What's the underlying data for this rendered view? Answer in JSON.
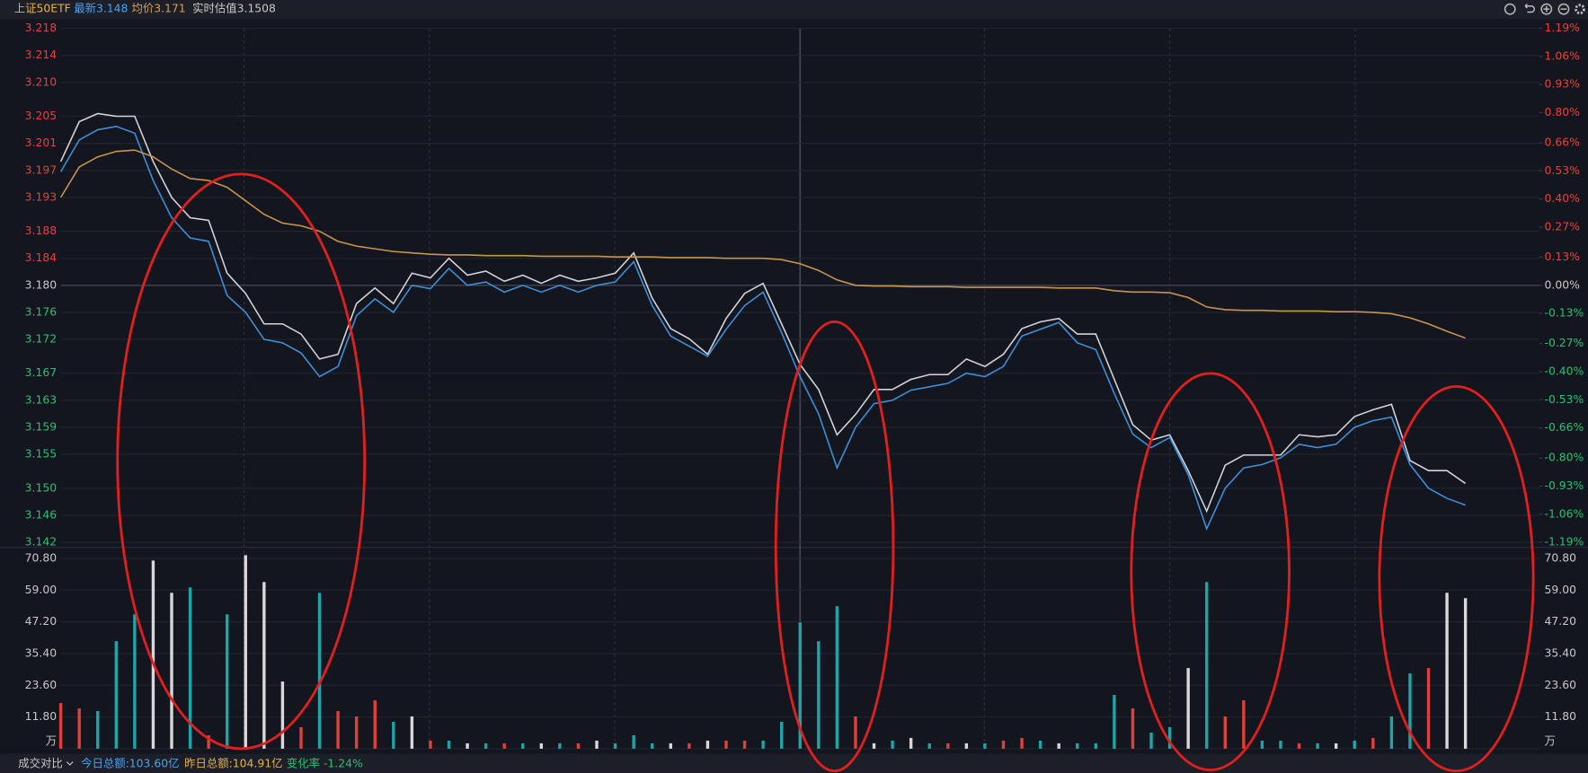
{
  "header": {
    "symbol": "上证50ETF",
    "latest": "最新3.148",
    "average": "均价3.171",
    "estimate": "实时估值3.1508"
  },
  "footer": {
    "compare": "成交对比",
    "today": "今日总额:103.60亿",
    "yesterday": "昨日总额:104.91亿",
    "change": "变化率 -1.24%"
  },
  "chart_data": [
    {
      "type": "line",
      "ylim": [
        3.142,
        3.218
      ],
      "yticks": [
        3.218,
        3.214,
        {
          "value": 3.21,
          "label": "3.210"
        },
        3.205,
        3.201,
        3.197,
        3.193,
        3.188,
        3.184,
        {
          "value": 3.18,
          "label": "3.180"
        },
        3.176,
        3.172,
        3.167,
        3.163,
        3.159,
        3.155,
        {
          "value": 3.15,
          "label": "3.150"
        },
        3.146,
        3.142
      ],
      "y2lim": [
        -1.19,
        1.19
      ],
      "y2ticks": [
        {
          "value": 1.19,
          "label": "1.19%"
        },
        {
          "value": 1.06,
          "label": "1.06%"
        },
        {
          "value": 0.93,
          "label": "0.93%"
        },
        {
          "value": 0.8,
          "label": "0.80%"
        },
        {
          "value": 0.66,
          "label": "0.66%"
        },
        {
          "value": 0.53,
          "label": "0.53%"
        },
        {
          "value": 0.4,
          "label": "0.40%"
        },
        {
          "value": 0.27,
          "label": "0.27%"
        },
        {
          "value": 0.13,
          "label": "0.13%"
        },
        {
          "value": 0,
          "label": "0.00%"
        },
        {
          "value": -0.13,
          "label": "-0.13%"
        },
        {
          "value": -0.27,
          "label": "-0.27%"
        },
        {
          "value": -0.4,
          "label": "-0.40%"
        },
        {
          "value": -0.53,
          "label": "-0.53%"
        },
        {
          "value": -0.66,
          "label": "-0.66%"
        },
        {
          "value": -0.8,
          "label": "-0.80%"
        },
        {
          "value": -0.93,
          "label": "-0.93%"
        },
        {
          "value": -1.06,
          "label": "-1.06%"
        },
        {
          "value": -1.19,
          "label": "-1.19%"
        }
      ],
      "grid": true,
      "series": [
        {
          "color": "#d4d4d8",
          "values": [
            3.1983,
            3.2042,
            3.2054,
            3.205,
            3.205,
            3.1983,
            3.193,
            3.19,
            3.1896,
            3.1818,
            3.1788,
            3.1743,
            3.1743,
            3.1728,
            3.1691,
            3.1698,
            3.1773,
            3.1796,
            3.1773,
            3.1818,
            3.1811,
            3.184,
            3.1815,
            3.1821,
            3.1806,
            3.1815,
            3.1803,
            3.1815,
            3.1806,
            3.1811,
            3.1818,
            3.1848,
            3.1781,
            3.1736,
            3.1721,
            3.1698,
            3.1751,
            3.1788,
            3.1803,
            3.1743,
            3.1683,
            3.1646,
            3.1579,
            3.1609,
            3.1646,
            3.1646,
            3.1661,
            3.1668,
            3.1668,
            3.1691,
            3.168,
            3.1698,
            3.1736,
            3.1746,
            3.1751,
            3.1728,
            3.1728,
            3.1661,
            3.1594,
            3.1571,
            3.1579,
            3.1526,
            3.1466,
            3.1534,
            3.1549,
            3.1549,
            3.1549,
            3.1579,
            3.1576,
            3.1579,
            3.1606,
            3.1616,
            3.1624,
            3.1541,
            3.1526,
            3.1526,
            3.1507
          ]
        },
        {
          "color": "#3f8fd8",
          "values": [
            3.1968,
            3.2015,
            3.203,
            3.2035,
            3.2025,
            3.1955,
            3.19,
            3.187,
            3.1865,
            3.1785,
            3.176,
            3.172,
            3.1715,
            3.17,
            3.1665,
            3.168,
            3.1755,
            3.178,
            3.176,
            3.18,
            3.1795,
            3.1825,
            3.18,
            3.1805,
            3.179,
            3.18,
            3.179,
            3.18,
            3.179,
            3.18,
            3.1805,
            3.1835,
            3.177,
            3.1725,
            3.171,
            3.1695,
            3.1735,
            3.177,
            3.179,
            3.173,
            3.1665,
            3.161,
            3.153,
            3.159,
            3.1625,
            3.163,
            3.1645,
            3.165,
            3.1655,
            3.167,
            3.1665,
            3.168,
            3.1725,
            3.1735,
            3.1745,
            3.1715,
            3.1705,
            3.164,
            3.158,
            3.156,
            3.1575,
            3.152,
            3.144,
            3.15,
            3.153,
            3.1535,
            3.1545,
            3.1565,
            3.156,
            3.1565,
            3.159,
            3.16,
            3.1605,
            3.1535,
            3.15,
            3.1485,
            3.1475
          ]
        },
        {
          "color": "#c9954c",
          "values": [
            3.193,
            3.1975,
            3.199,
            3.1998,
            3.2,
            3.199,
            3.1972,
            3.1958,
            3.1955,
            3.1945,
            3.1925,
            3.1905,
            3.1892,
            3.1888,
            3.188,
            3.1865,
            3.1858,
            3.1854,
            3.185,
            3.1848,
            3.1846,
            3.1845,
            3.1845,
            3.1844,
            3.1844,
            3.1844,
            3.1843,
            3.1843,
            3.1843,
            3.1843,
            3.1842,
            3.1842,
            3.1842,
            3.1841,
            3.1841,
            3.1841,
            3.184,
            3.184,
            3.184,
            3.1838,
            3.1832,
            3.1822,
            3.1808,
            3.18,
            3.1799,
            3.1799,
            3.1798,
            3.1798,
            3.1798,
            3.1797,
            3.1797,
            3.1797,
            3.1797,
            3.1797,
            3.1796,
            3.1796,
            3.1796,
            3.1792,
            3.179,
            3.179,
            3.1789,
            3.1782,
            3.1768,
            3.1764,
            3.1763,
            3.1763,
            3.1762,
            3.1762,
            3.1762,
            3.1761,
            3.1761,
            3.176,
            3.1758,
            3.1752,
            3.1743,
            3.1732,
            3.1722
          ]
        }
      ]
    },
    {
      "type": "bar",
      "ylim": [
        0,
        73.4
      ],
      "yticks": [
        {
          "value": 0,
          "label": "万"
        },
        {
          "value": 11.8,
          "label": "11.80"
        },
        {
          "value": 23.6,
          "label": "23.60"
        },
        {
          "value": 35.4,
          "label": "35.40"
        },
        {
          "value": 47.2,
          "label": "47.20"
        },
        {
          "value": 59,
          "label": "59.00"
        },
        {
          "value": 70.8,
          "label": "70.80"
        }
      ],
      "grid": true,
      "values": [
        17,
        15,
        14,
        40,
        50,
        70,
        58,
        60,
        5,
        50,
        72,
        62,
        25,
        8,
        58,
        14,
        12,
        18,
        10,
        12,
        3,
        3,
        2,
        2,
        2,
        2,
        2,
        2,
        2,
        3,
        2,
        5,
        2,
        2,
        2,
        3,
        3,
        3,
        3,
        10,
        47,
        40,
        53,
        12,
        2,
        3,
        4,
        2,
        2,
        2,
        2,
        3,
        4,
        3,
        2,
        2,
        2,
        20,
        15,
        6,
        8,
        30,
        62,
        12,
        18,
        3,
        3,
        2,
        2,
        2,
        3,
        4,
        12,
        28,
        30,
        58,
        56
      ],
      "colors": [
        "#e0403a",
        "#e0403a",
        "#1fa5a8",
        "#1fa5a8",
        "#1fa5a8",
        "#d8d8d8",
        "#d8d8d8",
        "#1fa5a8",
        "#e0403a",
        "#1fa5a8",
        "#d8d8d8",
        "#d8d8d8",
        "#d8d8d8",
        "#e0403a",
        "#1fa5a8",
        "#e0403a",
        "#e0403a",
        "#e0403a",
        "#1fa5a8",
        "#d8d8d8",
        "#e0403a",
        "#1fa5a8",
        "#d8d8d8",
        "#1fa5a8",
        "#e0403a",
        "#1fa5a8",
        "#d8d8d8",
        "#1fa5a8",
        "#e0403a",
        "#d8d8d8",
        "#1fa5a8",
        "#1fa5a8",
        "#1fa5a8",
        "#d8d8d8",
        "#e0403a",
        "#d8d8d8",
        "#e0403a",
        "#e0403a",
        "#1fa5a8",
        "#1fa5a8",
        "#1fa5a8",
        "#1fa5a8",
        "#1fa5a8",
        "#e0403a",
        "#d8d8d8",
        "#1fa5a8",
        "#d8d8d8",
        "#1fa5a8",
        "#e0403a",
        "#d8d8d8",
        "#1fa5a8",
        "#e0403a",
        "#e0403a",
        "#1fa5a8",
        "#d8d8d8",
        "#1fa5a8",
        "#1fa5a8",
        "#1fa5a8",
        "#e0403a",
        "#1fa5a8",
        "#1fa5a8",
        "#d8d8d8",
        "#1fa5a8",
        "#e0403a",
        "#e0403a",
        "#1fa5a8",
        "#1fa5a8",
        "#e0403a",
        "#1fa5a8",
        "#d8d8d8",
        "#1fa5a8",
        "#e0403a",
        "#1fa5a8",
        "#1fa5a8",
        "#e0403a",
        "#d8d8d8",
        "#d8d8d8"
      ]
    }
  ]
}
